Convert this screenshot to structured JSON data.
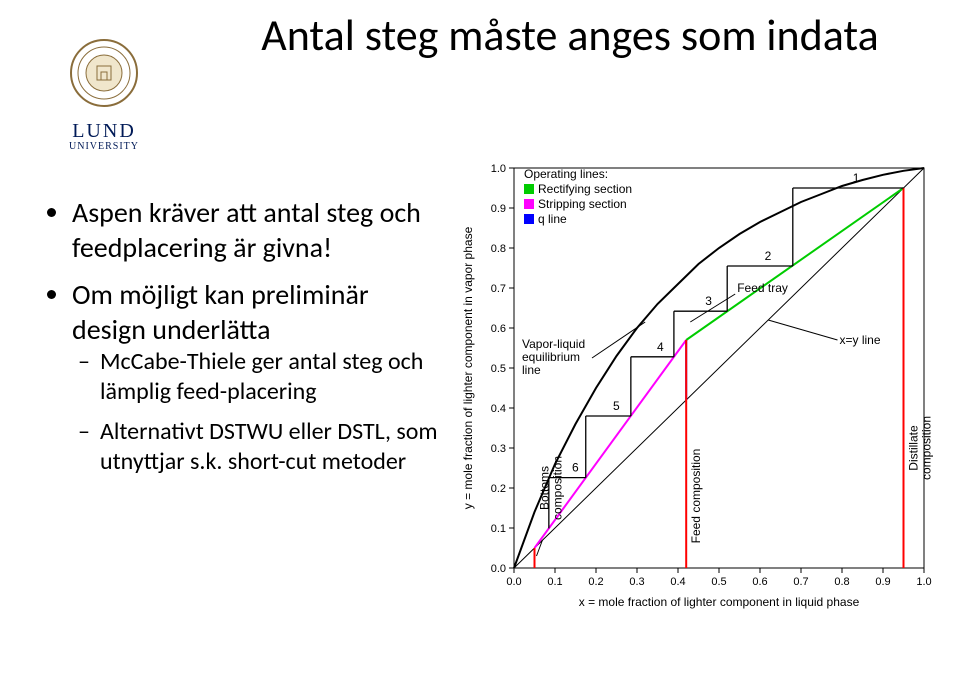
{
  "title": "Antal steg måste anges som indata",
  "logo": {
    "name": "LUND",
    "sub": "UNIVERSITY"
  },
  "bullets": {
    "b1": "Aspen kräver att antal steg och feedplacering är givna!",
    "b2": "Om möjligt kan preliminär design underlätta",
    "s1": "McCabe-Thiele ger antal steg och lämplig feed-placering",
    "s2": "Alternativt DSTWU eller DSTL, som utnyttjar s.k. short-cut metoder"
  },
  "chart": {
    "type": "mccabe-thiele",
    "xlabel": "x = mole fraction of lighter component in liquid phase",
    "ylabel": "y = mole fraction of lighter component in vapor phase",
    "xlim": [
      0,
      1
    ],
    "ylim": [
      0,
      1
    ],
    "tick_step": 0.1,
    "background_color": "#ffffff",
    "colors": {
      "frame": "#000000",
      "diag": "#000000",
      "eq_curve": "#000000",
      "rectifying": "#00cc00",
      "stripping": "#ff00ff",
      "qline": "#0000ff",
      "composition": "#ff0000",
      "step": "#000000"
    },
    "eq_curve_pts": [
      [
        0.0,
        0.0
      ],
      [
        0.05,
        0.14
      ],
      [
        0.1,
        0.26
      ],
      [
        0.15,
        0.36
      ],
      [
        0.2,
        0.45
      ],
      [
        0.25,
        0.53
      ],
      [
        0.3,
        0.6
      ],
      [
        0.35,
        0.66
      ],
      [
        0.4,
        0.71
      ],
      [
        0.45,
        0.76
      ],
      [
        0.5,
        0.8
      ],
      [
        0.55,
        0.835
      ],
      [
        0.6,
        0.865
      ],
      [
        0.65,
        0.89
      ],
      [
        0.7,
        0.915
      ],
      [
        0.75,
        0.935
      ],
      [
        0.8,
        0.955
      ],
      [
        0.85,
        0.97
      ],
      [
        0.9,
        0.983
      ],
      [
        0.95,
        0.993
      ],
      [
        1.0,
        1.0
      ]
    ],
    "rectifying_line": [
      [
        0.42,
        0.57
      ],
      [
        0.95,
        0.95
      ]
    ],
    "stripping_line": [
      [
        0.05,
        0.05
      ],
      [
        0.42,
        0.57
      ]
    ],
    "q_line": [
      [
        0.42,
        0.42
      ],
      [
        0.42,
        0.57
      ]
    ],
    "bottoms_x": 0.05,
    "distillate_x": 0.95,
    "feed_intersection": [
      0.42,
      0.57
    ],
    "steps": [
      {
        "n": "1",
        "h": [
          0.95,
          0.95,
          0.68
        ],
        "v": [
          0.68,
          0.95,
          0.755
        ]
      },
      {
        "n": "2",
        "h": [
          0.68,
          0.755,
          0.52
        ],
        "v": [
          0.52,
          0.755,
          0.642
        ]
      },
      {
        "n": "3",
        "h": [
          0.52,
          0.642,
          0.39
        ],
        "v": [
          0.39,
          0.642,
          0.528
        ]
      },
      {
        "n": "4",
        "h": [
          0.39,
          0.528,
          0.285
        ],
        "v": [
          0.285,
          0.528,
          0.38
        ]
      },
      {
        "n": "5",
        "h": [
          0.285,
          0.38,
          0.175
        ],
        "v": [
          0.175,
          0.38,
          0.226
        ]
      },
      {
        "n": "6",
        "h": [
          0.175,
          0.226,
          0.085
        ],
        "v": [
          0.085,
          0.226,
          0.099
        ]
      }
    ],
    "legend": {
      "title": "Operating lines:",
      "items": [
        {
          "label": "Rectifying section",
          "color": "#00cc00"
        },
        {
          "label": "Stripping section",
          "color": "#ff00ff"
        },
        {
          "label": "q line",
          "color": "#0000ff"
        }
      ]
    },
    "annotations": {
      "feed_tray": "Feed tray",
      "vle": "Vapor-liquid equilibrium line",
      "xy": "x=y line",
      "bottoms": "Bottoms composition",
      "feed": "Feed composition",
      "distillate": "Distillate composition"
    }
  }
}
